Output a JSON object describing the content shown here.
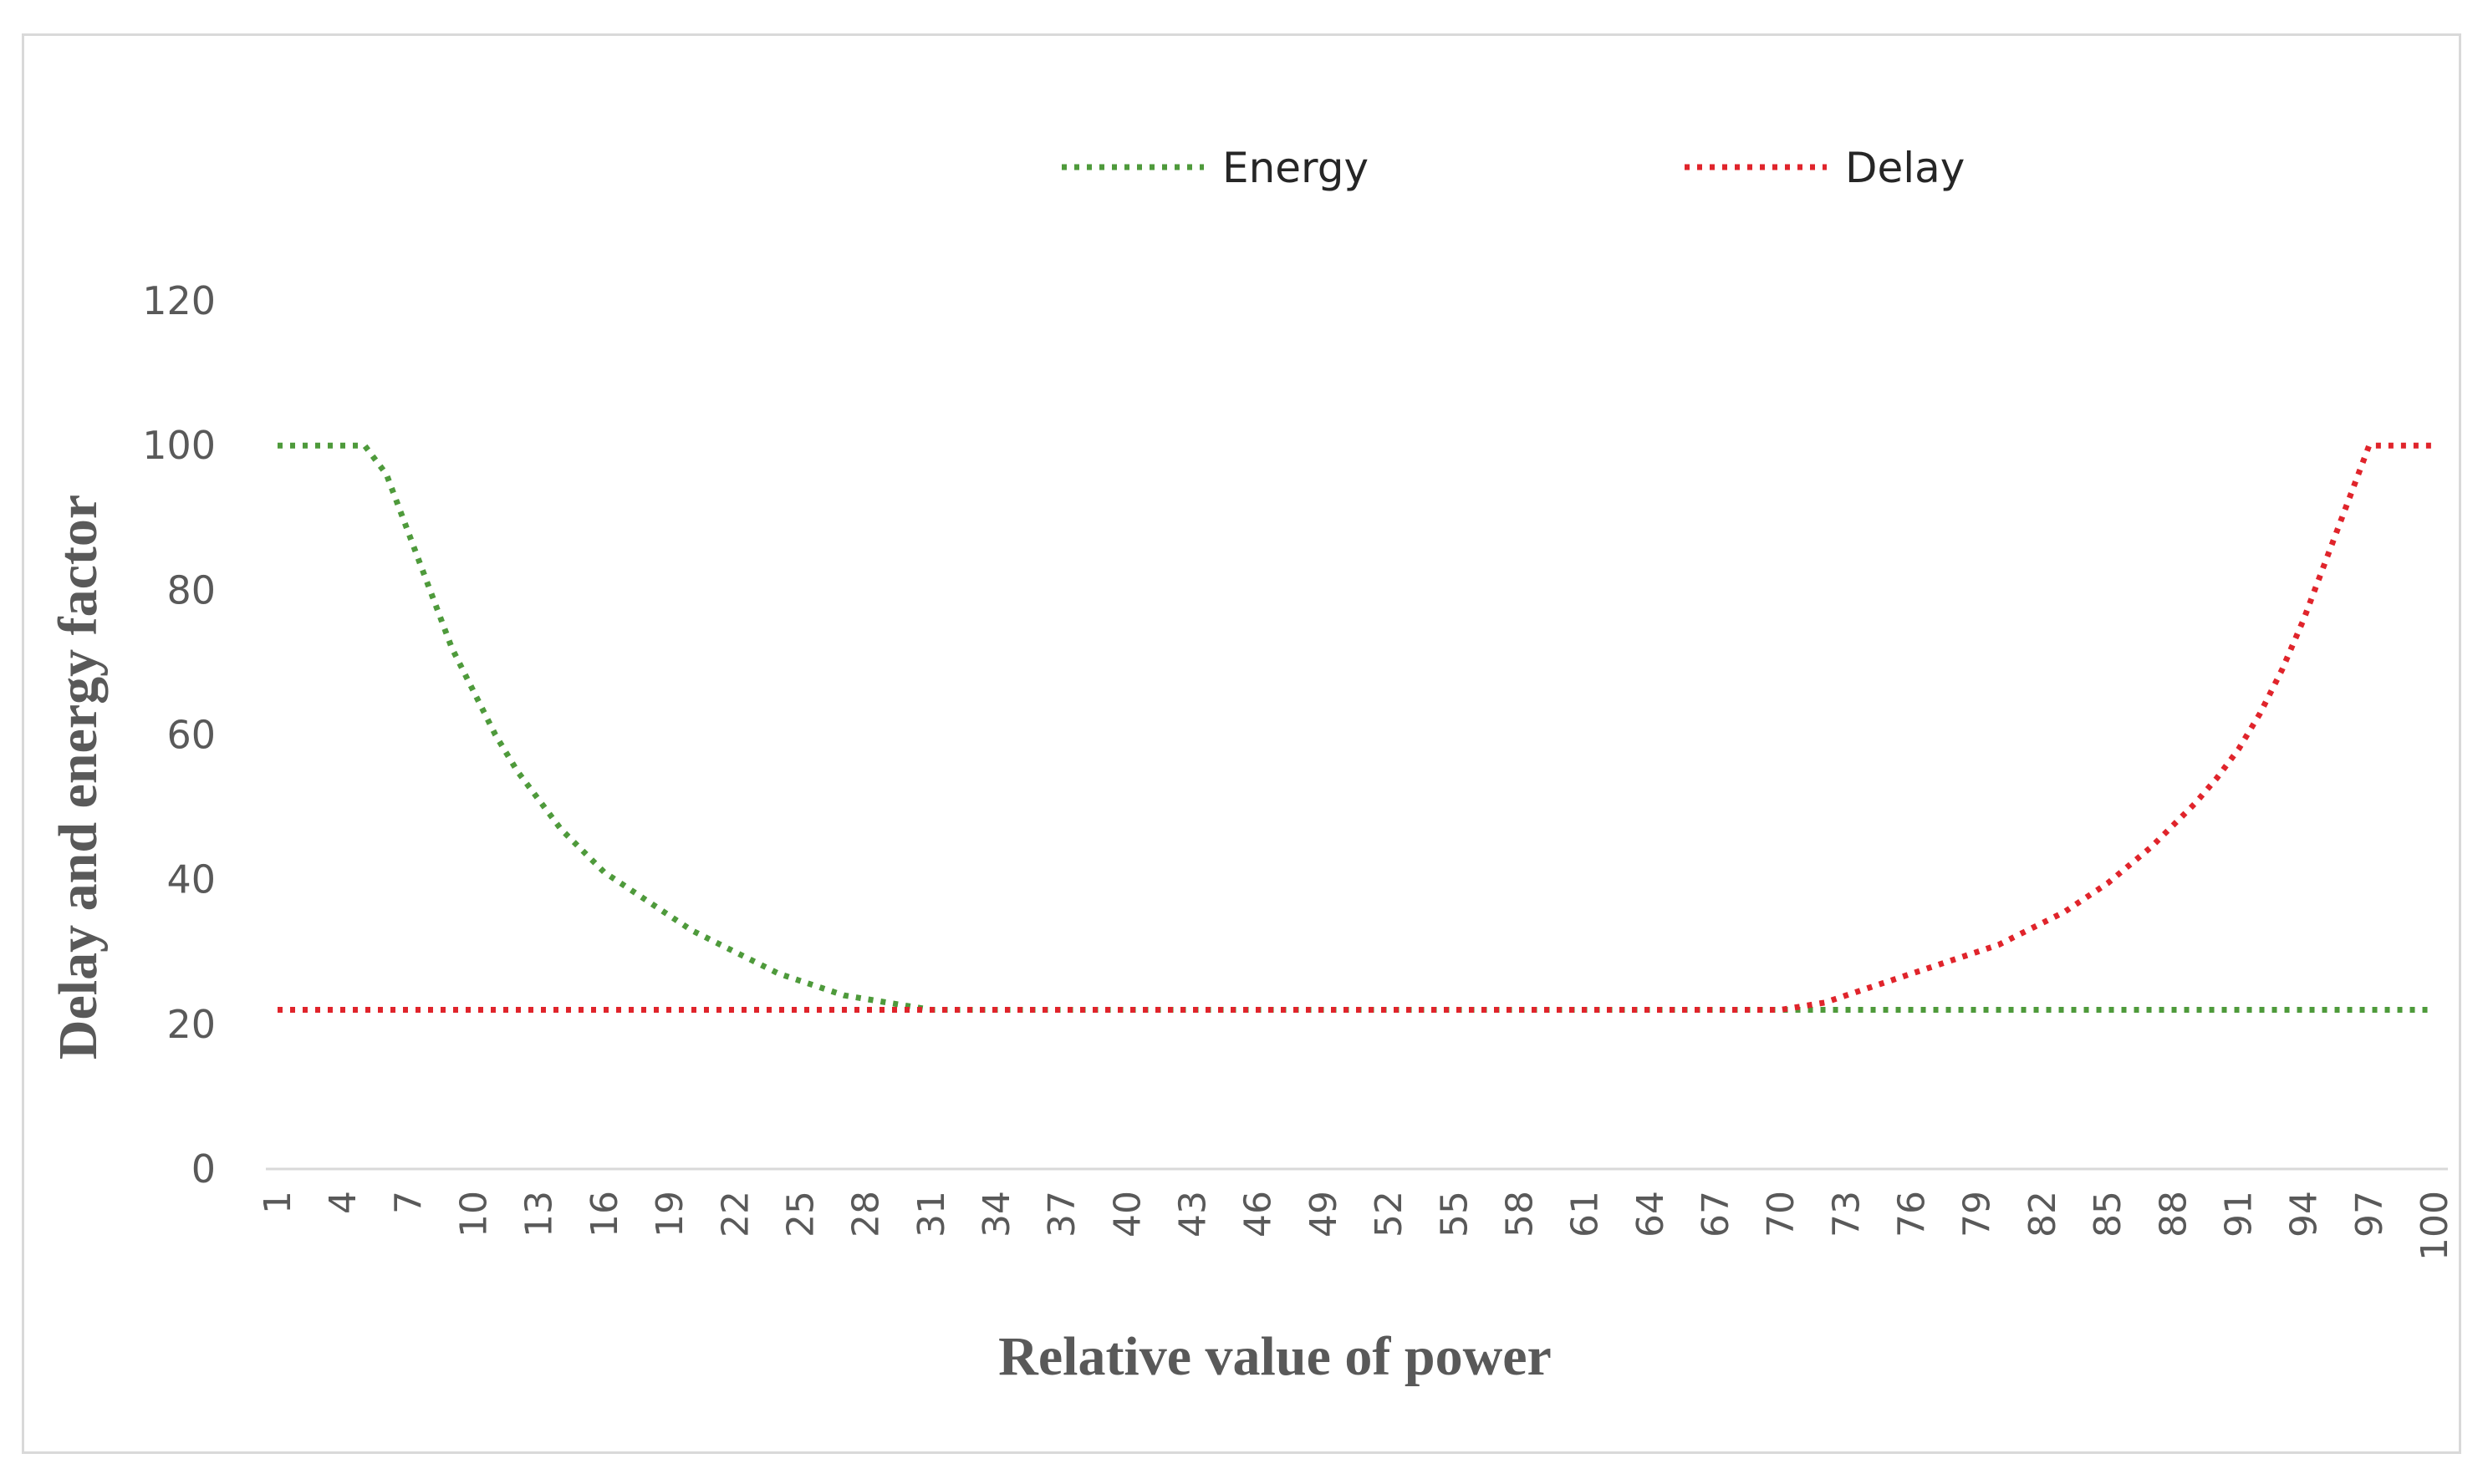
{
  "chart_data": {
    "type": "line",
    "xlabel": "Relative value of power",
    "ylabel": "Delay  and energy factor",
    "ylim": [
      0,
      120
    ],
    "yticks": [
      0,
      20,
      40,
      60,
      80,
      100,
      120
    ],
    "xticks": [
      "1",
      "4",
      "7",
      "10",
      "13",
      "16",
      "19",
      "22",
      "25",
      "28",
      "31",
      "34",
      "37",
      "40",
      "43",
      "46",
      "49",
      "52",
      "55",
      "58",
      "61",
      "64",
      "67",
      "70",
      "73",
      "76",
      "79",
      "82",
      "85",
      "88",
      "91",
      "94",
      "97",
      "100"
    ],
    "grid": false,
    "legend_position": "top",
    "line_style": "dotted",
    "series": [
      {
        "name": "Energy",
        "color": "#4e9a3b",
        "x": [
          1,
          2,
          3,
          4,
          5,
          6,
          7,
          8,
          9,
          10,
          11,
          12,
          13,
          14,
          15,
          16,
          17,
          18,
          19,
          20,
          21,
          22,
          23,
          24,
          25,
          26,
          27,
          28,
          29,
          30,
          31,
          32,
          33,
          34,
          35,
          36,
          37,
          38,
          39,
          40,
          41,
          42,
          43,
          44,
          45,
          46,
          47,
          48,
          49,
          50,
          51,
          52,
          53,
          54,
          55,
          56,
          57,
          58,
          59,
          60,
          61,
          62,
          63,
          64,
          65,
          66,
          67,
          68,
          69,
          70,
          71,
          72,
          73,
          74,
          75,
          76,
          77,
          78,
          79,
          80,
          81,
          82,
          83,
          84,
          85,
          86,
          87,
          88,
          89,
          90,
          91,
          92,
          93,
          94,
          95,
          96,
          97,
          98,
          99,
          100
        ],
        "values": [
          100,
          100,
          100,
          100,
          100,
          96,
          88,
          80,
          72,
          66,
          60,
          55,
          51,
          47,
          44,
          41,
          39,
          37,
          35,
          33,
          31.5,
          30,
          28.5,
          27,
          26,
          25,
          24,
          23.5,
          23,
          22.5,
          22,
          22,
          22,
          22,
          22,
          22,
          22,
          22,
          22,
          22,
          22,
          22,
          22,
          22,
          22,
          22,
          22,
          22,
          22,
          22,
          22,
          22,
          22,
          22,
          22,
          22,
          22,
          22,
          22,
          22,
          22,
          22,
          22,
          22,
          22,
          22,
          22,
          22,
          22,
          22,
          22,
          22,
          22,
          22,
          22,
          22,
          22,
          22,
          22,
          22,
          22,
          22,
          22,
          22,
          22,
          22,
          22,
          22,
          22,
          22,
          22,
          22,
          22,
          22,
          22,
          22,
          22,
          22,
          22,
          22
        ]
      },
      {
        "name": "Delay",
        "color": "#e0242b",
        "x": [
          1,
          2,
          3,
          4,
          5,
          6,
          7,
          8,
          9,
          10,
          11,
          12,
          13,
          14,
          15,
          16,
          17,
          18,
          19,
          20,
          21,
          22,
          23,
          24,
          25,
          26,
          27,
          28,
          29,
          30,
          31,
          32,
          33,
          34,
          35,
          36,
          37,
          38,
          39,
          40,
          41,
          42,
          43,
          44,
          45,
          46,
          47,
          48,
          49,
          50,
          51,
          52,
          53,
          54,
          55,
          56,
          57,
          58,
          59,
          60,
          61,
          62,
          63,
          64,
          65,
          66,
          67,
          68,
          69,
          70,
          71,
          72,
          73,
          74,
          75,
          76,
          77,
          78,
          79,
          80,
          81,
          82,
          83,
          84,
          85,
          86,
          87,
          88,
          89,
          90,
          91,
          92,
          93,
          94,
          95,
          96,
          97,
          98,
          99,
          100
        ],
        "values": [
          22,
          22,
          22,
          22,
          22,
          22,
          22,
          22,
          22,
          22,
          22,
          22,
          22,
          22,
          22,
          22,
          22,
          22,
          22,
          22,
          22,
          22,
          22,
          22,
          22,
          22,
          22,
          22,
          22,
          22,
          22,
          22,
          22,
          22,
          22,
          22,
          22,
          22,
          22,
          22,
          22,
          22,
          22,
          22,
          22,
          22,
          22,
          22,
          22,
          22,
          22,
          22,
          22,
          22,
          22,
          22,
          22,
          22,
          22,
          22,
          22,
          22,
          22,
          22,
          22,
          22,
          22,
          22,
          22,
          22,
          22.5,
          23,
          24,
          25,
          26,
          27,
          28,
          29,
          30,
          31,
          32.5,
          34,
          35.5,
          37.5,
          39.5,
          42,
          44.5,
          47.5,
          50.5,
          54,
          58,
          63,
          69,
          76,
          84,
          92,
          100,
          100,
          100,
          100
        ]
      }
    ]
  }
}
